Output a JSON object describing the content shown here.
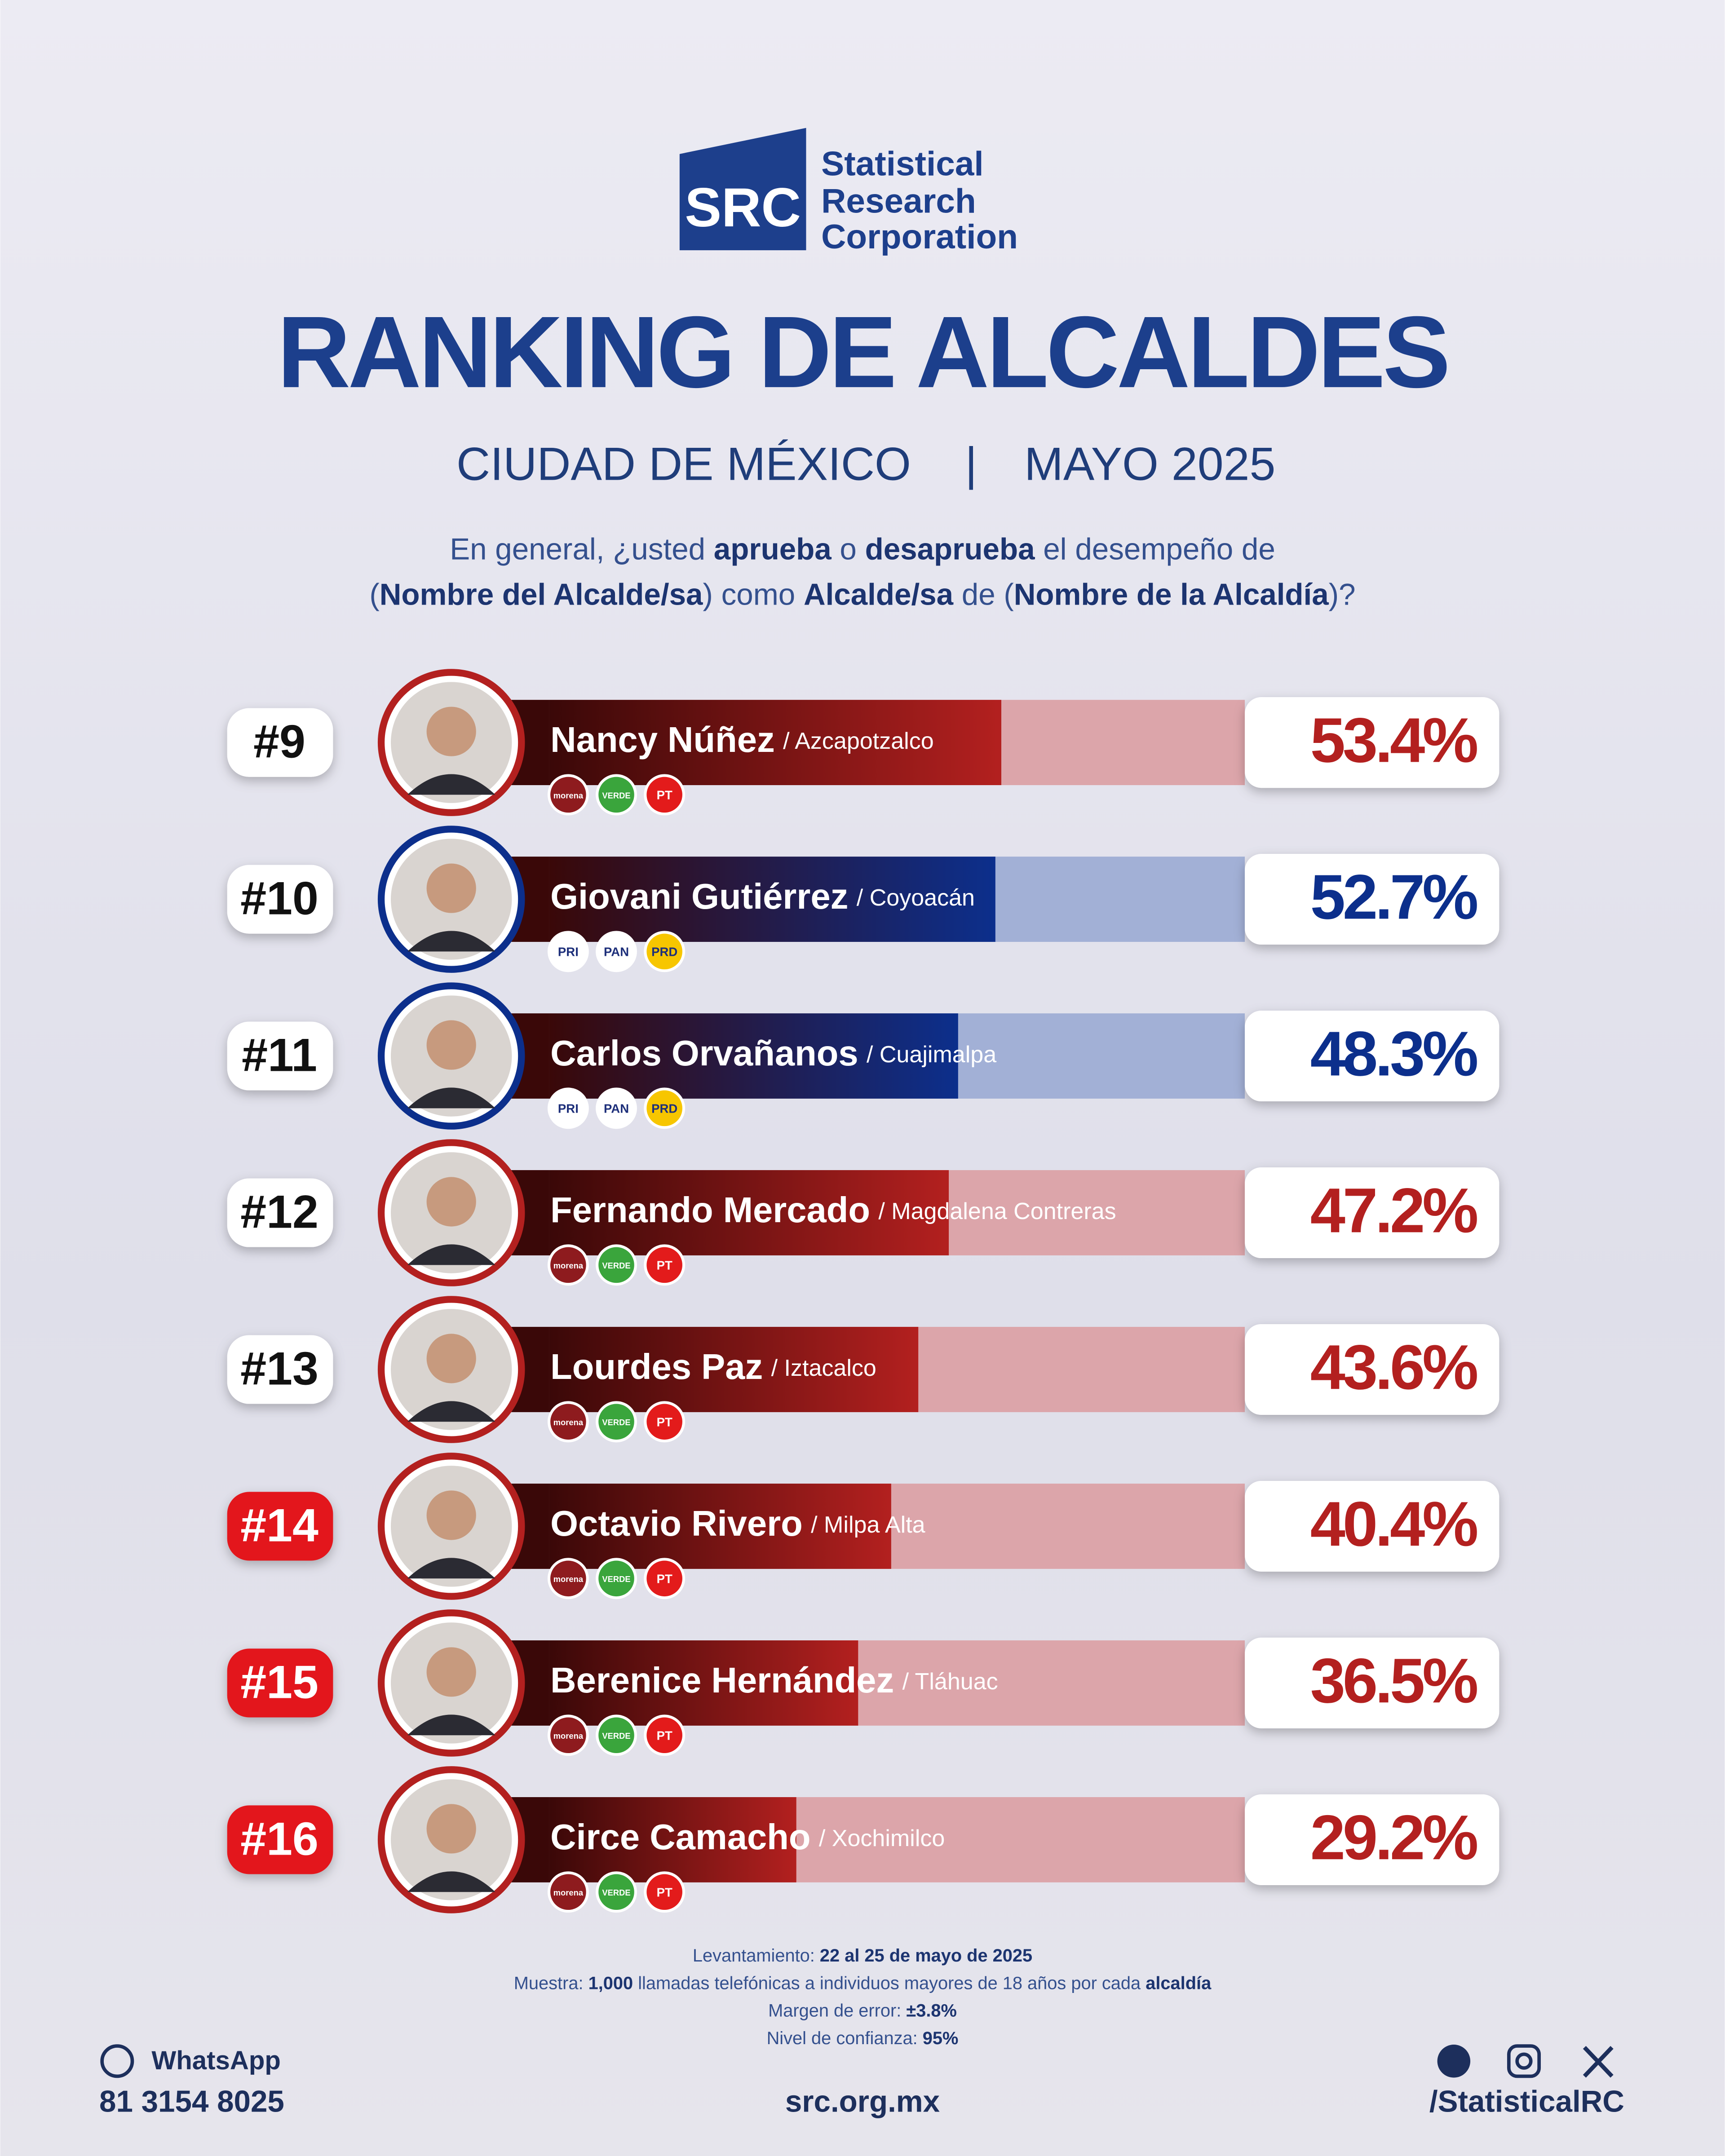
{
  "logo": {
    "mark": "SRC",
    "lines": [
      "Statistical",
      "Research",
      "Corporation"
    ]
  },
  "question": [
    [
      "En general, ¿usted ",
      "aprueba",
      " o ",
      "desaprueba",
      " el desempeño de"
    ],
    [
      "(",
      "Nombre del Alcalde/sa",
      ") como ",
      "Alcalde/sa",
      " de (",
      "Nombre de la Alcaldía",
      ")?"
    ]
  ],
  "chart_data": {
    "type": "bar",
    "title": "RANKING DE ALCALDES",
    "subtitle": [
      "CIUDAD DE MÉXICO",
      "MAYO 2025"
    ],
    "subtitle_separator": "|",
    "ranks": [
      "#9",
      "#10",
      "#11",
      "#12",
      "#13",
      "#14",
      "#15",
      "#16"
    ],
    "categories": [
      "Nancy Núñez",
      "Giovani Gutiérrez",
      "Carlos Orvañanos",
      "Fernando Mercado",
      "Lourdes Paz",
      "Octavio Rivero",
      "Berenice Hernández",
      "Circe Camacho"
    ],
    "alcaldias": [
      "/ Azcapotzalco",
      "/ Coyoacán",
      "/ Cuajimalpa",
      "/ Magdalena Contreras",
      "/ Iztacalco",
      "/ Milpa Alta",
      "/ Tláhuac",
      "/ Xochimilco"
    ],
    "parties": [
      [
        "morena",
        "VERDE",
        "PT"
      ],
      [
        "PRI",
        "PAN",
        "PRD"
      ],
      [
        "PRI",
        "PAN",
        "PRD"
      ],
      [
        "morena",
        "VERDE",
        "PT"
      ],
      [
        "morena",
        "VERDE",
        "PT"
      ],
      [
        "morena",
        "VERDE",
        "PT"
      ],
      [
        "morena",
        "VERDE",
        "PT"
      ],
      [
        "morena",
        "VERDE",
        "PT"
      ]
    ],
    "party_colors": {
      "morena": "#8e1b1e",
      "VERDE": "#3aa53c",
      "PT": "#e31b1b",
      "PRI": "#ffffff",
      "PAN": "#ffffff",
      "PRD": "#f7c600"
    },
    "values": [
      53.4,
      52.7,
      48.3,
      47.2,
      43.6,
      40.4,
      36.5,
      29.2
    ],
    "value_labels": [
      "53.4%",
      "52.7%",
      "48.3%",
      "47.2%",
      "43.6%",
      "40.4%",
      "36.5%",
      "29.2%"
    ],
    "colors": [
      "#b3201f",
      "#0c2f8c",
      "#0c2f8c",
      "#b3201f",
      "#b3201f",
      "#b3201f",
      "#b3201f",
      "#b3201f"
    ],
    "track_colors": [
      "#dca5aa",
      "#a2b0d6",
      "#a2b0d6",
      "#dca5aa",
      "#dca5aa",
      "#dca5aa",
      "#dca5aa",
      "#dca5aa"
    ],
    "rank_badge_colors": [
      "#ffffff",
      "#ffffff",
      "#ffffff",
      "#ffffff",
      "#ffffff",
      "#e3151b",
      "#e3151b",
      "#e3151b"
    ],
    "xlim": [
      0,
      100
    ]
  },
  "notes": [
    [
      "Levantamiento: ",
      "22 al 25 de mayo de 2025"
    ],
    [
      "Muestra: ",
      "1,000",
      " llamadas telefónicas a individuos mayores de 18 años por cada ",
      "alcaldía"
    ],
    [
      "Margen de error: ",
      "±3.8%"
    ],
    [
      "Nivel de confianza: ",
      "95%"
    ]
  ],
  "footer": {
    "whatsapp": "WhatsApp",
    "phone": "81 3154 8025",
    "website": "src.org.mx",
    "handle": "/StatisticalRC"
  }
}
